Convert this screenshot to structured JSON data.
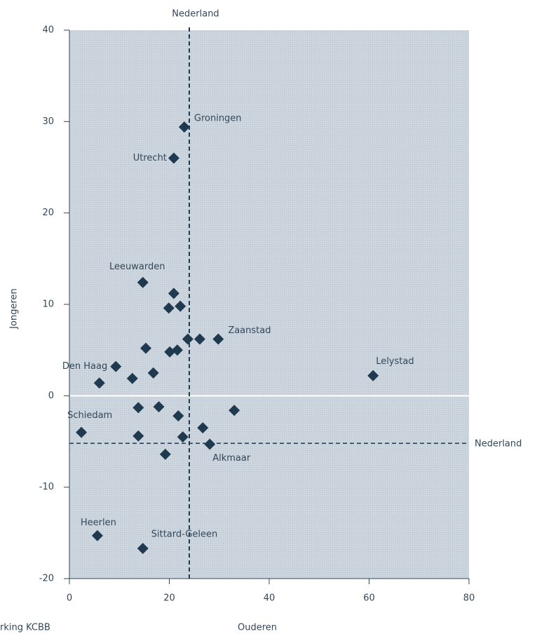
{
  "chart_data": {
    "type": "scatter",
    "x_label": "Ouderen",
    "y_label": "Jongeren",
    "source": "rking KCBB",
    "color": "#1f3a4f",
    "xlim": [
      0,
      80
    ],
    "xticks": [
      0,
      20,
      40,
      60,
      80
    ],
    "ylim": [
      -20,
      40
    ],
    "yticks": [
      40,
      30,
      20,
      10,
      0,
      -10,
      -20
    ],
    "reference_lines": [
      {
        "axis": "x",
        "value": 24,
        "label": "Nederland"
      },
      {
        "axis": "y",
        "value": -5.2,
        "label": "Nederland"
      }
    ],
    "labels": [
      "Groningen",
      "Utrecht",
      "Leeuwarden",
      null,
      null,
      null,
      null,
      null,
      "Zaanstad",
      null,
      null,
      null,
      "Den Haag",
      null,
      null,
      null,
      "Lelystad",
      null,
      null,
      null,
      "Schiedam",
      null,
      null,
      null,
      null,
      "Alkmaar",
      null,
      "Heerlen",
      "Sittard-Geleen"
    ],
    "x": [
      23.0,
      20.9,
      14.7,
      20.9,
      19.9,
      22.2,
      23.7,
      26.1,
      29.8,
      15.3,
      20.1,
      21.6,
      9.3,
      16.8,
      12.6,
      6.0,
      60.8,
      13.8,
      17.9,
      33.0,
      2.4,
      21.8,
      26.7,
      13.8,
      22.7,
      28.1,
      19.2,
      5.6,
      14.7
    ],
    "y": [
      29.4,
      26.0,
      12.4,
      11.2,
      9.6,
      9.8,
      6.2,
      6.2,
      6.2,
      5.2,
      4.8,
      5.0,
      3.2,
      2.5,
      1.9,
      1.4,
      2.2,
      -1.3,
      -1.2,
      -1.6,
      -4.0,
      -2.2,
      -3.5,
      -4.4,
      -4.5,
      -5.3,
      -6.4,
      -15.3,
      -16.7
    ]
  }
}
